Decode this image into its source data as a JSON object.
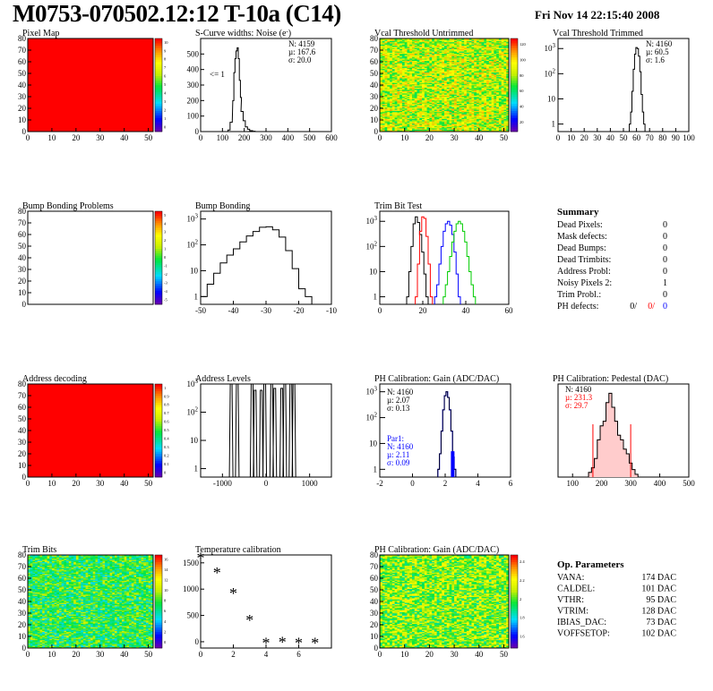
{
  "header": {
    "title": "M0753-070502.12:12 T-10a (C14)",
    "date": "Fri Nov 14 22:15:40 2008"
  },
  "colors": {
    "red": "#ff0000",
    "blue": "#0000ff",
    "green": "#00cc00",
    "black": "#000000"
  },
  "chart_data": [
    {
      "id": "pixel_map",
      "type": "heatmap",
      "title": "Pixel Map",
      "xlim": [
        0,
        52
      ],
      "ylim": [
        0,
        80
      ],
      "xticks": [
        "0",
        "10",
        "20",
        "30",
        "40",
        "50"
      ],
      "yticks": [
        "0",
        "10",
        "20",
        "30",
        "40",
        "50",
        "60",
        "70",
        "80"
      ],
      "fill": "uniform-max",
      "palette_ticks": [
        "10",
        "9",
        "8",
        "7",
        "6",
        "5",
        "4",
        "3",
        "2",
        "1",
        "0"
      ]
    },
    {
      "id": "scurve_noise",
      "type": "line",
      "title": "S-Curve widths: Noise (e",
      "title_sup": "-",
      "title_end": ")",
      "xlim": [
        0,
        600
      ],
      "ylim": [
        0,
        600
      ],
      "xticks": [
        "0",
        "100",
        "200",
        "300",
        "400",
        "500",
        "600"
      ],
      "yticks": [
        "0",
        "100",
        "200",
        "300",
        "400",
        "500"
      ],
      "stats": [
        "N: 4159",
        "µ: 167.6",
        "σ: 20.0"
      ],
      "annotation": "<= 1",
      "x": [
        120,
        130,
        140,
        150,
        155,
        160,
        165,
        170,
        175,
        180,
        185,
        190,
        200,
        210,
        220,
        230,
        240,
        260
      ],
      "y": [
        0,
        10,
        60,
        200,
        380,
        470,
        520,
        540,
        470,
        330,
        220,
        130,
        70,
        30,
        15,
        6,
        2,
        0
      ]
    },
    {
      "id": "vcal_untrimmed",
      "type": "heatmap",
      "title": "Vcal Threshold Untrimmed",
      "xlim": [
        0,
        52
      ],
      "ylim": [
        0,
        80
      ],
      "xticks": [
        "0",
        "10",
        "20",
        "30",
        "40",
        "50"
      ],
      "yticks": [
        "0",
        "10",
        "20",
        "30",
        "40",
        "50",
        "60",
        "70",
        "80"
      ],
      "fill": "noise-mid-high",
      "palette_ticks": [
        "120",
        "100",
        "80",
        "60",
        "40",
        "20"
      ]
    },
    {
      "id": "vcal_trimmed",
      "type": "line",
      "title": "Vcal Threshold Trimmed",
      "xlim": [
        0,
        100
      ],
      "ylog": true,
      "ylim_exp": [
        -0.3,
        3.4
      ],
      "xticks": [
        "0",
        "10",
        "20",
        "30",
        "40",
        "50",
        "60",
        "70",
        "80",
        "90",
        "100"
      ],
      "stats": [
        "N: 4160",
        "µ: 60.5",
        "σ: 1.6"
      ],
      "x": [
        55,
        56,
        57,
        58,
        59,
        60,
        61,
        62,
        63,
        64,
        65,
        66
      ],
      "y": [
        1,
        3,
        20,
        150,
        600,
        1100,
        1000,
        500,
        120,
        15,
        3,
        1
      ]
    },
    {
      "id": "bump_bonding_problems",
      "type": "heatmap",
      "title": "Bump Bonding Problems",
      "xlim": [
        0,
        52
      ],
      "ylim": [
        0,
        80
      ],
      "xticks": [],
      "yticks": [
        "0",
        "10",
        "20",
        "30",
        "40",
        "50",
        "60",
        "70",
        "80"
      ],
      "fill": "empty",
      "palette_ticks": [
        "5",
        "4",
        "3",
        "2",
        "1",
        "0",
        "-1",
        "-2",
        "-3",
        "-4",
        "-5"
      ]
    },
    {
      "id": "bump_bonding",
      "type": "line",
      "title": "Bump Bonding",
      "xlim": [
        -50,
        -10
      ],
      "ylog": true,
      "ylim_exp": [
        -0.3,
        3.3
      ],
      "xticks": [
        "-50",
        "-40",
        "-30",
        "-20",
        "-10"
      ],
      "x": [
        -49,
        -47,
        -45,
        -43,
        -41,
        -39,
        -37,
        -35,
        -33,
        -31,
        -29,
        -27,
        -25,
        -23,
        -21,
        -19,
        -17
      ],
      "y": [
        1,
        3,
        8,
        20,
        40,
        70,
        130,
        220,
        330,
        480,
        500,
        380,
        200,
        60,
        12,
        2,
        1
      ]
    },
    {
      "id": "trim_bit_test",
      "type": "line",
      "title": "Trim Bit Test",
      "xlim": [
        0,
        60
      ],
      "ylog": true,
      "ylim_exp": [
        -0.3,
        3.4
      ],
      "xticks": [
        "0",
        "20",
        "40",
        "60"
      ],
      "series": [
        {
          "color": "#000000",
          "x": [
            13,
            14,
            15,
            16,
            17,
            18,
            19,
            20,
            21,
            22
          ],
          "y": [
            1,
            10,
            100,
            800,
            1500,
            900,
            300,
            60,
            8,
            1
          ]
        },
        {
          "color": "#ff0000",
          "x": [
            17,
            18,
            19,
            20,
            21,
            22,
            23,
            24
          ],
          "y": [
            1,
            20,
            400,
            1500,
            1300,
            250,
            20,
            1
          ]
        },
        {
          "color": "#0000ff",
          "x": [
            26,
            27,
            28,
            29,
            30,
            31,
            32,
            33,
            34,
            35,
            36,
            37
          ],
          "y": [
            1,
            3,
            20,
            100,
            400,
            800,
            1000,
            700,
            300,
            60,
            8,
            1
          ]
        },
        {
          "color": "#00cc00",
          "x": [
            30,
            31,
            32,
            33,
            34,
            35,
            36,
            37,
            38,
            39,
            40,
            41,
            42,
            43,
            44
          ],
          "y": [
            1,
            3,
            10,
            40,
            150,
            400,
            800,
            1000,
            800,
            400,
            150,
            40,
            10,
            3,
            1
          ]
        }
      ]
    },
    {
      "id": "address_decoding",
      "type": "heatmap",
      "title": "Address decoding",
      "xlim": [
        0,
        52
      ],
      "ylim": [
        0,
        80
      ],
      "xticks": [
        "0",
        "10",
        "20",
        "30",
        "40",
        "50"
      ],
      "yticks": [
        "0",
        "10",
        "20",
        "30",
        "40",
        "50",
        "60",
        "70",
        "80"
      ],
      "fill": "uniform-max",
      "palette_ticks": [
        "1",
        "0.9",
        "0.8",
        "0.7",
        "0.6",
        "0.5",
        "0.4",
        "0.3",
        "0.2",
        "0.1",
        "0"
      ]
    },
    {
      "id": "address_levels",
      "type": "line",
      "title": "Address Levels",
      "xlim": [
        -1500,
        1500
      ],
      "ylog": true,
      "ylim_exp": [
        -0.3,
        3.0
      ],
      "xticks": [
        "-1000",
        "0",
        "1000"
      ],
      "x": [
        -800,
        -660,
        -320,
        -250,
        -110,
        -30,
        130,
        200,
        360,
        430,
        570,
        640
      ],
      "y": [
        1000,
        1000,
        1000,
        600,
        600,
        1000,
        1000,
        700,
        700,
        1000,
        1000,
        1000
      ]
    },
    {
      "id": "ph_gain",
      "type": "line",
      "title": "PH Calibration: Gain (ADC/DAC)",
      "xlim": [
        -2,
        6
      ],
      "ylog": true,
      "ylim_exp": [
        -0.3,
        3.3
      ],
      "xticks": [
        "-2",
        "0",
        "2",
        "4",
        "6"
      ],
      "stats": [
        "N: 4160",
        "µ: 2.07",
        "σ: 0.13"
      ],
      "fit_stats": [
        "Par1:",
        "N: 4160",
        "µ: 2.11",
        "σ: 0.09"
      ],
      "x": [
        1.6,
        1.7,
        1.8,
        1.9,
        2.0,
        2.1,
        2.2,
        2.3,
        2.4,
        2.5,
        2.6
      ],
      "y": [
        1,
        4,
        30,
        200,
        700,
        1000,
        600,
        200,
        30,
        3,
        1
      ]
    },
    {
      "id": "ph_pedestal",
      "type": "line",
      "title": "PH Calibration: Pedestal (DAC)",
      "xlim": [
        50,
        500
      ],
      "ylim": [
        0,
        100
      ],
      "xticks": [
        "100",
        "200",
        "300",
        "400",
        "500"
      ],
      "stats": [
        "N: 4160",
        "µ: 231.3",
        "σ: 29.7"
      ],
      "x": [
        160,
        170,
        180,
        190,
        200,
        210,
        220,
        230,
        240,
        250,
        260,
        270,
        280,
        290,
        300,
        310,
        320
      ],
      "y": [
        5,
        10,
        20,
        40,
        55,
        60,
        80,
        90,
        75,
        60,
        45,
        40,
        30,
        25,
        15,
        8,
        3
      ]
    },
    {
      "id": "trim_bits",
      "type": "heatmap",
      "title": "Trim Bits",
      "xlim": [
        0,
        52
      ],
      "ylim": [
        0,
        80
      ],
      "xticks": [
        "0",
        "10",
        "20",
        "30",
        "40",
        "50"
      ],
      "yticks": [
        "0",
        "10",
        "20",
        "30",
        "40",
        "50",
        "60",
        "70",
        "80"
      ],
      "fill": "noise-low-mid",
      "palette_ticks": [
        "16",
        "14",
        "12",
        "10",
        "8",
        "6",
        "4",
        "2",
        "0"
      ]
    },
    {
      "id": "temperature_calibration",
      "type": "scatter",
      "title": "Temperature calibration",
      "xlim": [
        0,
        8
      ],
      "ylim": [
        -120,
        1650
      ],
      "xticks": [
        "0",
        "2",
        "4",
        "6"
      ],
      "yticks": [
        "0",
        "500",
        "1000",
        "1500"
      ],
      "x": [
        0,
        1,
        2,
        3,
        4,
        5,
        6,
        7
      ],
      "y": [
        1570,
        1290,
        900,
        390,
        -40,
        -30,
        -40,
        -40
      ]
    },
    {
      "id": "ph_gain_map",
      "type": "heatmap",
      "title": "PH Calibration: Gain (ADC/DAC)",
      "xlim": [
        0,
        52
      ],
      "ylim": [
        0,
        80
      ],
      "xticks": [
        "0",
        "10",
        "20",
        "30",
        "40",
        "50"
      ],
      "yticks": [
        "0",
        "10",
        "20",
        "30",
        "40",
        "50",
        "60",
        "70",
        "80"
      ],
      "fill": "noise-mid",
      "palette_ticks": [
        "2.4",
        "2.2",
        "2",
        "1.8",
        "1.6"
      ]
    }
  ],
  "summary": {
    "title": "Summary",
    "rows": [
      {
        "label": "Dead Pixels:",
        "value": "0"
      },
      {
        "label": "Mask defects:",
        "value": "0"
      },
      {
        "label": "Dead Bumps:",
        "value": "0"
      },
      {
        "label": "Dead Trimbits:",
        "value": "0"
      },
      {
        "label": "Address Probl:",
        "value": "0"
      },
      {
        "label": "Noisy Pixels 2:",
        "value": "1"
      },
      {
        "label": "Trim Probl.:",
        "value": "0"
      }
    ],
    "ph_label": "PH defects:",
    "ph_values": [
      "0/",
      "0/",
      "0"
    ]
  },
  "op_params": {
    "title": "Op. Parameters",
    "rows": [
      {
        "label": "VANA:",
        "value": "174 DAC"
      },
      {
        "label": "CALDEL:",
        "value": "101 DAC"
      },
      {
        "label": "VTHR:",
        "value": "95 DAC"
      },
      {
        "label": "VTRIM:",
        "value": "128 DAC"
      },
      {
        "label": "IBIAS_DAC:",
        "value": "73 DAC"
      },
      {
        "label": "VOFFSETOP:",
        "value": "102 DAC"
      }
    ]
  }
}
